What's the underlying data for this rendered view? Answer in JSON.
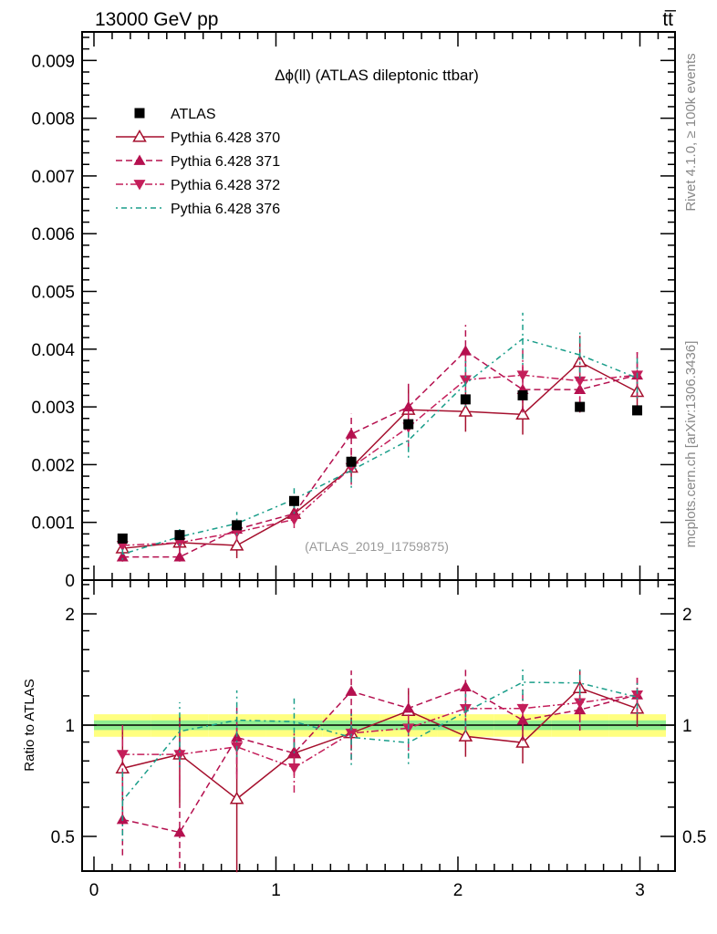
{
  "header": {
    "left": "13000 GeV pp",
    "right": "tt̅"
  },
  "side_texts": {
    "rivet": "Rivet 4.1.0, ≥ 100k events",
    "mcplots": "mcplots.cern.ch [arXiv:1306.3436]"
  },
  "chart_data": {
    "type": "line",
    "title": "Δϕ(ll) (ATLAS dileptonic ttbar)",
    "watermark": "(ATLAS_2019_I1759875)",
    "xlabel": "",
    "ylabel": "",
    "ratio_ylabel": "Ratio to ATLAS",
    "xlim": [
      0,
      3.1416
    ],
    "ylim": [
      0,
      0.0095
    ],
    "ratio_ylim": [
      0.4,
      2.45
    ],
    "ratio_scale": "log",
    "x_ticks": [
      "0",
      "1",
      "2",
      "3"
    ],
    "y_ticks": [
      "0",
      "0.001",
      "0.002",
      "0.003",
      "0.004",
      "0.005",
      "0.006",
      "0.007",
      "0.008",
      "0.009"
    ],
    "ratio_ticks": [
      "0.5",
      "1",
      "2"
    ],
    "legend_position": "top-left",
    "x": [
      0.157,
      0.471,
      0.785,
      1.1,
      1.414,
      1.728,
      2.042,
      2.356,
      2.67,
      2.985
    ],
    "reference_band": {
      "inner_rel": 0.03,
      "outer_rel": 0.07,
      "inner_color": "#90ee90",
      "outer_color": "#ffff80"
    },
    "series": [
      {
        "name": "ATLAS",
        "color": "#000000",
        "marker": "square",
        "line": "none",
        "values": [
          0.00072,
          0.00078,
          0.00095,
          0.00137,
          0.00205,
          0.0027,
          0.00313,
          0.0032,
          0.003,
          0.00294
        ],
        "errors": [
          3e-05,
          3e-05,
          3e-05,
          4e-05,
          5e-05,
          6e-05,
          7e-05,
          7e-05,
          6e-05,
          6e-05
        ]
      },
      {
        "name": "Pythia 6.428 370",
        "color": "#a50f2d",
        "marker": "triangle-open",
        "line": "solid",
        "values": [
          0.00055,
          0.00065,
          0.0006,
          0.00115,
          0.00195,
          0.00295,
          0.00292,
          0.00287,
          0.00378,
          0.00326
        ],
        "errors": [
          0.00015,
          0.00017,
          0.00022,
          0.00012,
          0.0002,
          0.0004,
          0.00035,
          0.00035,
          0.00045,
          0.00035
        ]
      },
      {
        "name": "Pythia 6.428 371",
        "color": "#b5104f",
        "marker": "triangle-up",
        "line": "dashed",
        "values": [
          0.0004,
          0.0004,
          0.00088,
          0.00115,
          0.00253,
          0.003,
          0.00397,
          0.0033,
          0.0033,
          0.00355
        ],
        "errors": [
          8e-05,
          8e-05,
          0.00018,
          0.00015,
          0.00035,
          0.0004,
          0.00045,
          0.0004,
          0.0004,
          0.0004
        ]
      },
      {
        "name": "Pythia 6.428 372",
        "color": "#c41e5a",
        "marker": "triangle-down",
        "line": "dashdot",
        "values": [
          0.0006,
          0.00065,
          0.00083,
          0.00105,
          0.00195,
          0.00265,
          0.00347,
          0.00355,
          0.00345,
          0.00355
        ],
        "errors": [
          0.00012,
          0.00015,
          0.00015,
          0.00015,
          0.0003,
          0.00035,
          0.00045,
          0.00045,
          0.0004,
          0.0004
        ]
      },
      {
        "name": "Pythia 6.428 376",
        "color": "#1a9e8a",
        "marker": "none",
        "line": "dotted",
        "values": [
          0.00045,
          0.00075,
          0.00098,
          0.0014,
          0.0019,
          0.00242,
          0.0034,
          0.00418,
          0.0039,
          0.0035
        ],
        "errors": [
          0.0001,
          0.00015,
          0.0002,
          0.00025,
          0.0003,
          0.0003,
          0.0004,
          0.00045,
          0.0004,
          0.00035
        ]
      }
    ]
  }
}
